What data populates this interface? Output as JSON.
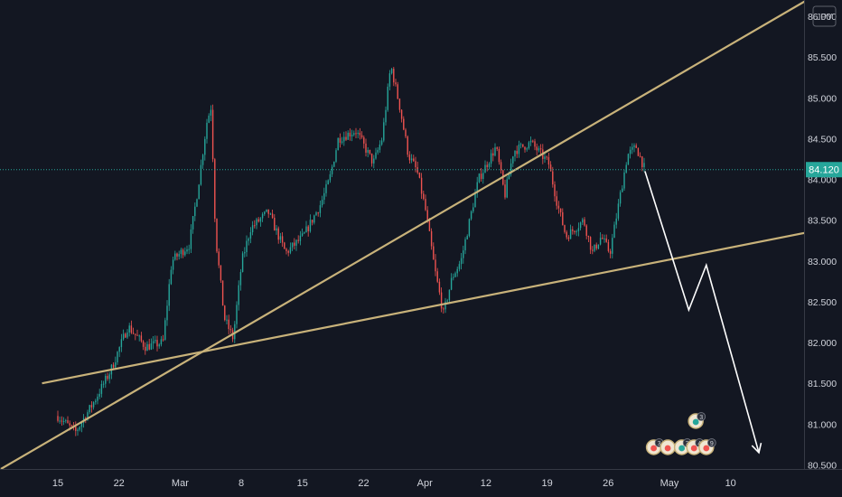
{
  "chart_data": {
    "type": "candlestick",
    "currency": "JPY",
    "last_price": "84.120",
    "y_ticks": [
      "86.000",
      "85.500",
      "85.000",
      "84.500",
      "84.000",
      "83.500",
      "83.000",
      "82.500",
      "82.000",
      "81.500",
      "81.000",
      "80.500"
    ],
    "x_ticks": [
      "15",
      "22",
      "Mar",
      "8",
      "15",
      "22",
      "Apr",
      "12",
      "19",
      "26",
      "May",
      "10"
    ],
    "ylim": [
      80.45,
      86.2
    ],
    "grid": false,
    "colors": {
      "background": "#131722",
      "up": "#26a69a",
      "down": "#ef5350",
      "trendline": "#c8b27a",
      "projection": "#ffffff",
      "price_label": "#26a69a"
    },
    "price_path": [
      {
        "day": 0,
        "price": 81.1
      },
      {
        "day": 2,
        "price": 80.9
      },
      {
        "day": 4,
        "price": 81.25
      },
      {
        "day": 6,
        "price": 81.65
      },
      {
        "day": 8,
        "price": 82.2
      },
      {
        "day": 10,
        "price": 81.95
      },
      {
        "day": 12,
        "price": 82.0
      },
      {
        "day": 13,
        "price": 83.0
      },
      {
        "day": 15,
        "price": 83.2
      },
      {
        "day": 16,
        "price": 83.9
      },
      {
        "day": 17,
        "price": 84.7
      },
      {
        "day": 17.5,
        "price": 84.9
      },
      {
        "day": 18,
        "price": 83.3
      },
      {
        "day": 19,
        "price": 82.3
      },
      {
        "day": 20,
        "price": 82.05
      },
      {
        "day": 21,
        "price": 83.0
      },
      {
        "day": 22,
        "price": 83.4
      },
      {
        "day": 24,
        "price": 83.6
      },
      {
        "day": 26,
        "price": 83.1
      },
      {
        "day": 28,
        "price": 83.3
      },
      {
        "day": 30,
        "price": 83.7
      },
      {
        "day": 31,
        "price": 84.0
      },
      {
        "day": 32,
        "price": 84.5
      },
      {
        "day": 34,
        "price": 84.6
      },
      {
        "day": 36,
        "price": 84.2
      },
      {
        "day": 37,
        "price": 84.5
      },
      {
        "day": 38,
        "price": 85.4
      },
      {
        "day": 39,
        "price": 84.9
      },
      {
        "day": 40,
        "price": 84.3
      },
      {
        "day": 41,
        "price": 84.1
      },
      {
        "day": 42,
        "price": 83.6
      },
      {
        "day": 43,
        "price": 82.9
      },
      {
        "day": 44,
        "price": 82.35
      },
      {
        "day": 45,
        "price": 82.8
      },
      {
        "day": 46,
        "price": 83.0
      },
      {
        "day": 47,
        "price": 83.5
      },
      {
        "day": 48,
        "price": 84.0
      },
      {
        "day": 50,
        "price": 84.4
      },
      {
        "day": 51,
        "price": 83.8
      },
      {
        "day": 52,
        "price": 84.35
      },
      {
        "day": 54,
        "price": 84.45
      },
      {
        "day": 56,
        "price": 84.2
      },
      {
        "day": 57,
        "price": 83.7
      },
      {
        "day": 58,
        "price": 83.3
      },
      {
        "day": 60,
        "price": 83.5
      },
      {
        "day": 61,
        "price": 83.1
      },
      {
        "day": 62,
        "price": 83.3
      },
      {
        "day": 63,
        "price": 83.1
      },
      {
        "day": 64,
        "price": 83.7
      },
      {
        "day": 65,
        "price": 84.3
      },
      {
        "day": 66,
        "price": 84.4
      },
      {
        "day": 67,
        "price": 84.12
      }
    ],
    "trendlines": [
      {
        "name": "upper-trendline",
        "from": {
          "day": -6.5,
          "price": 80.45
        },
        "to": {
          "day": 85.5,
          "price": 86.2
        }
      },
      {
        "name": "lower-trendline",
        "from": {
          "day": -1.8,
          "price": 81.5
        },
        "to": {
          "day": 85.5,
          "price": 83.35
        }
      }
    ],
    "projection": [
      {
        "day": 67,
        "price": 84.1
      },
      {
        "day": 72,
        "price": 82.4
      },
      {
        "day": 74,
        "price": 82.95
      },
      {
        "day": 80,
        "price": 80.65
      }
    ],
    "event_markers": [
      {
        "day": 68,
        "label": "3",
        "color": "#ef5350",
        "row": 0
      },
      {
        "day": 69.6,
        "label": "",
        "color": "#ef5350",
        "row": 0
      },
      {
        "day": 71.2,
        "label": "3",
        "color": "#26a69a",
        "row": 0
      },
      {
        "day": 72.6,
        "label": "4",
        "color": "#ef5350",
        "row": 0
      },
      {
        "day": 74,
        "label": "9",
        "color": "#ef5350",
        "row": 0
      },
      {
        "day": 72.8,
        "label": "3",
        "color": "#26a69a",
        "row": 1
      }
    ]
  }
}
